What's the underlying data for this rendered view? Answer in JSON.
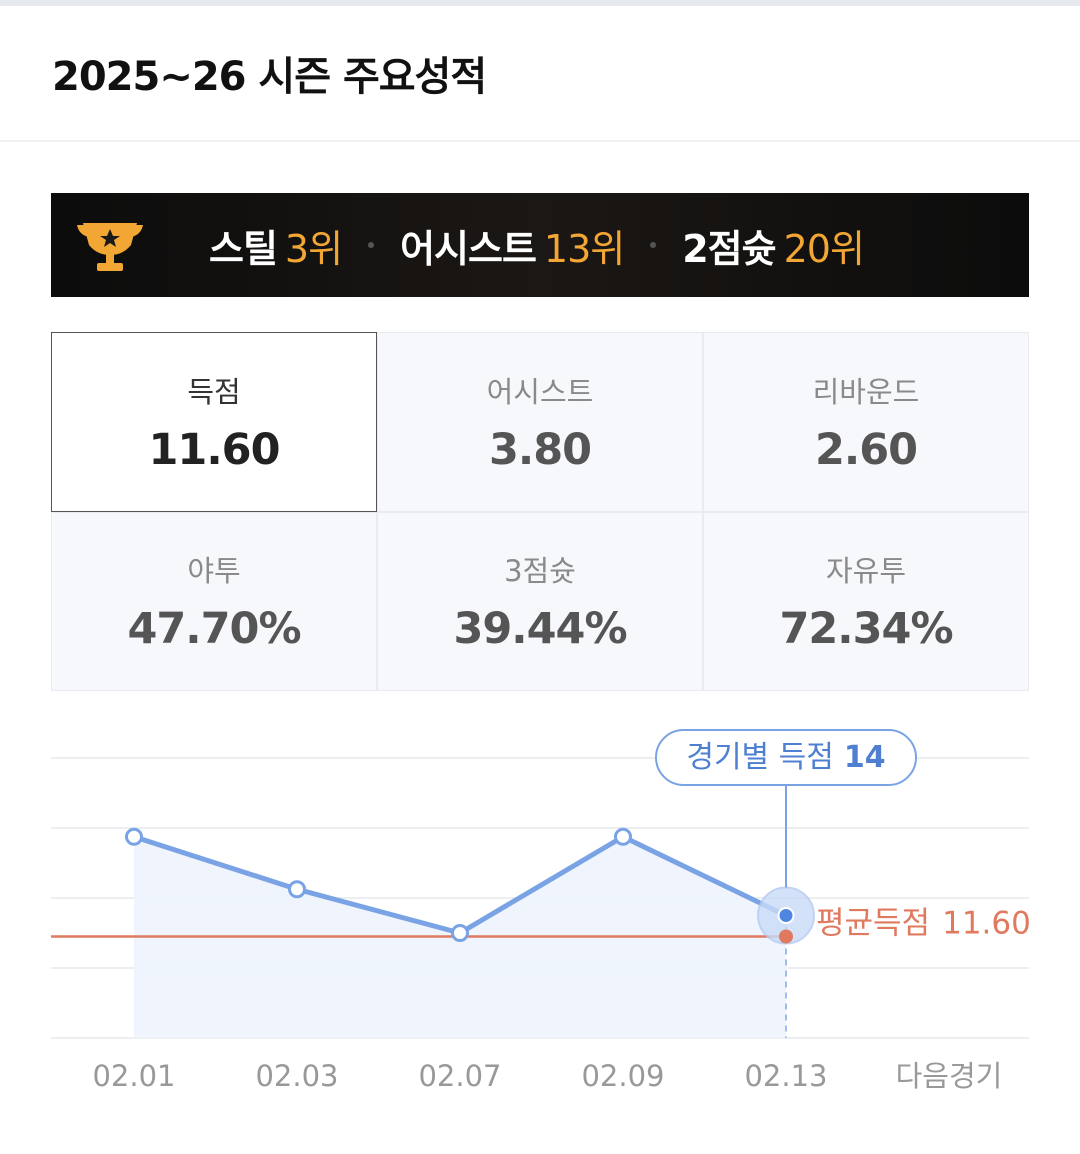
{
  "title": "2025~26 시즌 주요성적",
  "ranks": [
    {
      "label": "스틸",
      "rank": "3위"
    },
    {
      "label": "어시스트",
      "rank": "13위"
    },
    {
      "label": "2점슛",
      "rank": "20위"
    }
  ],
  "stats": [
    {
      "label": "득점",
      "value": "11.60"
    },
    {
      "label": "어시스트",
      "value": "3.80"
    },
    {
      "label": "리바운드",
      "value": "2.60"
    },
    {
      "label": "야투",
      "value": "47.70%"
    },
    {
      "label": "3점슛",
      "value": "39.44%"
    },
    {
      "label": "자유투",
      "value": "72.34%"
    }
  ],
  "chart_data": {
    "type": "line",
    "categories": [
      "02.01",
      "02.03",
      "02.07",
      "02.09",
      "02.13",
      "다음경기"
    ],
    "values": [
      23,
      17,
      12,
      23,
      14,
      null
    ],
    "color": "#7aa3e5",
    "tooltip_label": "경기별 득점",
    "average": {
      "label": "평균득점",
      "value": 11.6,
      "value_label": "11.60",
      "color": "#e07a5f"
    },
    "ylim": [
      0,
      32
    ],
    "yticks": [
      0,
      8,
      16,
      24,
      32
    ],
    "grid": true
  }
}
